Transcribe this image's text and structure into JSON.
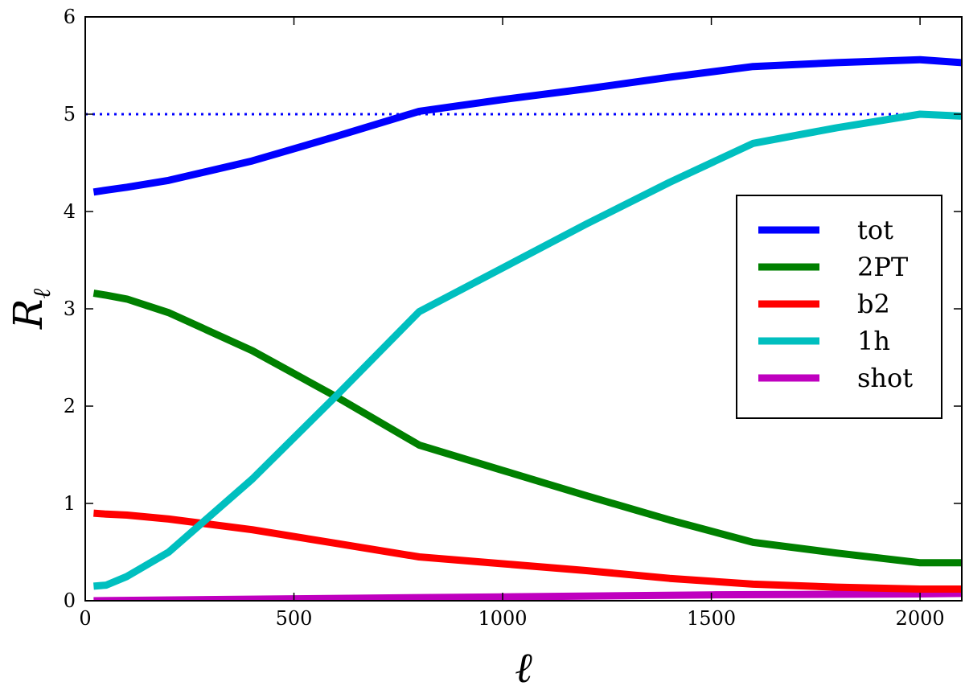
{
  "chart_data": {
    "type": "line",
    "title": "",
    "xlabel": "ℓ",
    "ylabel": "R",
    "ylabel_subscript": "ℓ",
    "xlim": [
      0,
      2100
    ],
    "ylim": [
      0,
      6
    ],
    "xticks": [
      0,
      500,
      1000,
      1500,
      2000
    ],
    "yticks": [
      0,
      1,
      2,
      3,
      4,
      5,
      6
    ],
    "grid": false,
    "legend_position": "right",
    "series": [
      {
        "name": "tot",
        "color": "#0000ff",
        "style": "solid",
        "x": [
          20,
          50,
          100,
          200,
          400,
          600,
          800,
          1000,
          1200,
          1400,
          1600,
          1800,
          2000,
          2100
        ],
        "y": [
          4.2,
          4.22,
          4.25,
          4.32,
          4.52,
          4.77,
          5.03,
          5.15,
          5.26,
          5.38,
          5.49,
          5.53,
          5.56,
          5.53
        ]
      },
      {
        "name": "2PT",
        "color": "#008000",
        "style": "solid",
        "x": [
          20,
          50,
          100,
          200,
          400,
          600,
          800,
          1000,
          1200,
          1400,
          1600,
          1800,
          2000,
          2100
        ],
        "y": [
          3.16,
          3.14,
          3.1,
          2.96,
          2.57,
          2.1,
          1.6,
          1.34,
          1.08,
          0.83,
          0.6,
          0.49,
          0.39,
          0.39
        ]
      },
      {
        "name": "b2",
        "color": "#ff0000",
        "style": "solid",
        "x": [
          20,
          50,
          100,
          200,
          400,
          600,
          800,
          1000,
          1200,
          1400,
          1600,
          1800,
          2000,
          2100
        ],
        "y": [
          0.9,
          0.89,
          0.88,
          0.84,
          0.73,
          0.59,
          0.45,
          0.38,
          0.31,
          0.23,
          0.17,
          0.14,
          0.12,
          0.12
        ]
      },
      {
        "name": "1h",
        "color": "#00bfbf",
        "style": "solid",
        "x": [
          20,
          50,
          100,
          200,
          400,
          600,
          800,
          1000,
          1200,
          1400,
          1600,
          1800,
          2000,
          2100
        ],
        "y": [
          0.15,
          0.16,
          0.25,
          0.5,
          1.25,
          2.1,
          2.97,
          3.42,
          3.87,
          4.3,
          4.7,
          4.86,
          5.0,
          4.98
        ]
      },
      {
        "name": "shot",
        "color": "#bf00bf",
        "style": "solid",
        "x": [
          20,
          500,
          1000,
          1500,
          2000,
          2100
        ],
        "y": [
          0.0,
          0.02,
          0.04,
          0.06,
          0.07,
          0.075
        ]
      }
    ],
    "reference_lines": [
      {
        "y": 5,
        "color": "#0000ff",
        "style": "dotted"
      }
    ]
  }
}
